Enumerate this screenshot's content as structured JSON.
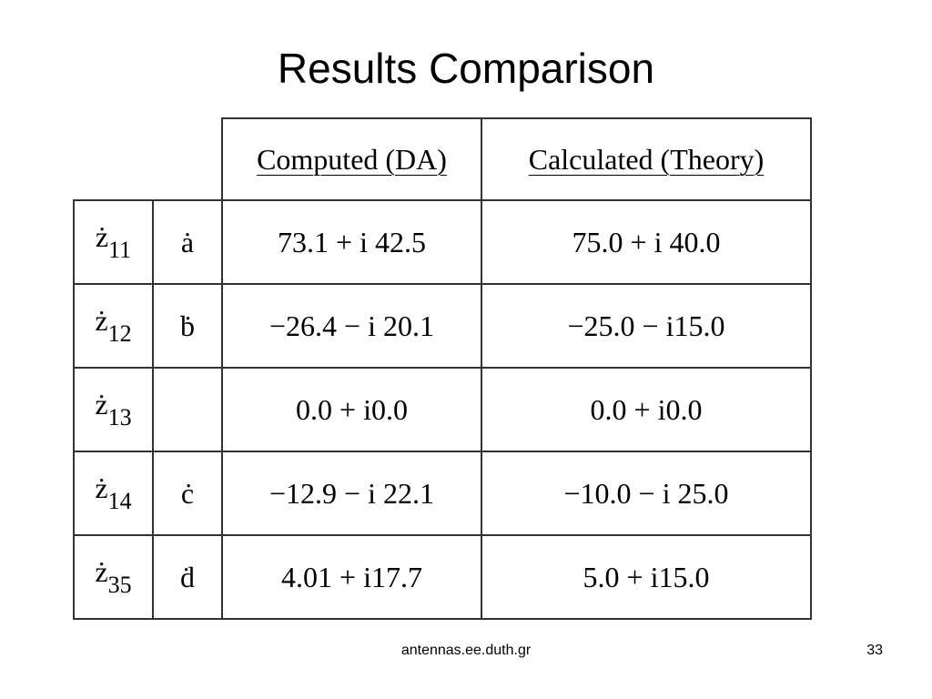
{
  "title": "Results Comparison",
  "table": {
    "header": [
      "Computed (DA)",
      "Calculated (Theory)"
    ],
    "rows": [
      {
        "symbol": "ż",
        "sub": "11",
        "param": "ȧ",
        "computed": "73.1 + i 42.5",
        "theory": "75.0 + i 40.0"
      },
      {
        "symbol": "ż",
        "sub": "12",
        "param": "ḃ",
        "computed": "−26.4 − i 20.1",
        "theory": "−25.0 − i15.0"
      },
      {
        "symbol": "ż",
        "sub": "13",
        "param": null,
        "computed": "0.0 + i0.0",
        "theory": "0.0 + i0.0"
      },
      {
        "symbol": "ż",
        "sub": "14",
        "param": "ċ",
        "computed": "−12.9 − i 22.1",
        "theory": "−10.0 − i 25.0"
      },
      {
        "symbol": "ż",
        "sub": "35",
        "param": "ḋ",
        "computed": "4.01 + i17.7",
        "theory": "5.0 + i15.0"
      }
    ]
  },
  "footer": {
    "site": "antennas.ee.duth.gr",
    "page": "33"
  }
}
